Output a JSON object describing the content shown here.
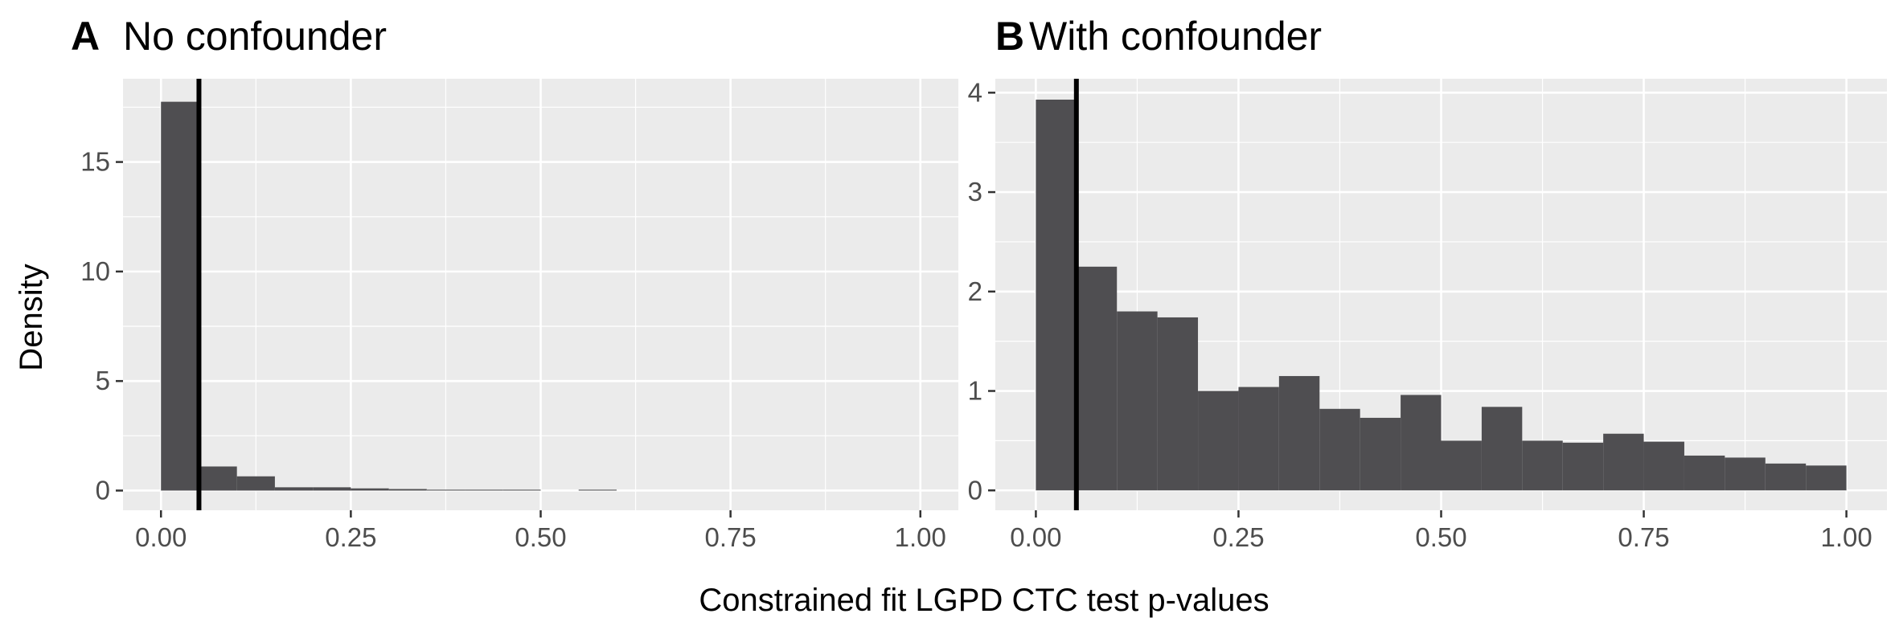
{
  "figure": {
    "xlabel": "Constrained fit LGPD CTC test p-values",
    "ylabel": "Density"
  },
  "colors": {
    "panel_background": "#ebebeb",
    "grid_major": "#ffffff",
    "bar_fill": "#4f4e51",
    "threshold_line": "#000000",
    "tick_text": "#4d4d4d"
  },
  "chart_data": [
    {
      "type": "bar",
      "panel_tag": "A",
      "title": "No confounder",
      "bin_width": 0.05,
      "bin_starts": [
        0.0,
        0.05,
        0.1,
        0.15,
        0.2,
        0.25,
        0.3,
        0.35,
        0.4,
        0.45,
        0.5,
        0.55
      ],
      "values": [
        17.75,
        1.1,
        0.65,
        0.15,
        0.15,
        0.1,
        0.07,
        0.04,
        0.04,
        0.04,
        0.0,
        0.04
      ],
      "threshold_x": 0.05,
      "xlim": [
        -0.05,
        1.05
      ],
      "ylim": [
        -0.9,
        18.8
      ],
      "x_ticks": [
        0,
        0.25,
        0.5,
        0.75,
        1.0
      ],
      "x_tick_labels": [
        "0.00",
        "0.25",
        "0.50",
        "0.75",
        "1.00"
      ],
      "y_ticks": [
        0,
        5,
        10,
        15
      ],
      "y_tick_labels": [
        "0",
        "5",
        "10",
        "15"
      ],
      "grid": true
    },
    {
      "type": "bar",
      "panel_tag": "B",
      "title": "With confounder",
      "bin_width": 0.05,
      "bin_starts": [
        0.0,
        0.05,
        0.1,
        0.15,
        0.2,
        0.25,
        0.3,
        0.35,
        0.4,
        0.45,
        0.5,
        0.55,
        0.6,
        0.65,
        0.7,
        0.75,
        0.8,
        0.85,
        0.9,
        0.95
      ],
      "values": [
        3.93,
        2.25,
        1.8,
        1.74,
        1.0,
        1.04,
        1.15,
        0.82,
        0.73,
        0.96,
        0.5,
        0.84,
        0.5,
        0.48,
        0.57,
        0.49,
        0.35,
        0.33,
        0.27,
        0.25
      ],
      "threshold_x": 0.05,
      "xlim": [
        -0.05,
        1.05
      ],
      "ylim": [
        -0.2,
        4.14
      ],
      "x_ticks": [
        0,
        0.25,
        0.5,
        0.75,
        1.0
      ],
      "x_tick_labels": [
        "0.00",
        "0.25",
        "0.50",
        "0.75",
        "1.00"
      ],
      "y_ticks": [
        0,
        1,
        2,
        3,
        4
      ],
      "y_tick_labels": [
        "0",
        "1",
        "2",
        "3",
        "4"
      ],
      "grid": true
    }
  ]
}
